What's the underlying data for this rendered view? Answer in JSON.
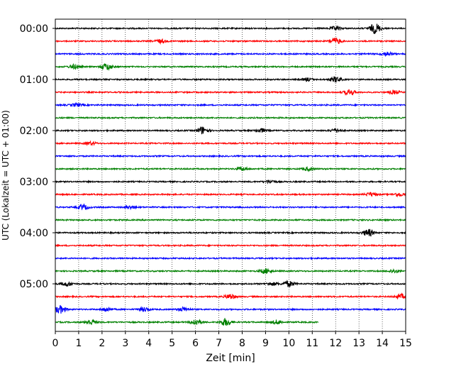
{
  "chart_data": {
    "type": "line",
    "xlabel": "Zeit  [min]",
    "ylabel": "UTC (Lokalzeit = UTC + 01:00)",
    "xlim": [
      0,
      15
    ],
    "x_ticks": [
      "0",
      "1",
      "2",
      "3",
      "4",
      "5",
      "6",
      "7",
      "8",
      "9",
      "10",
      "11",
      "12",
      "13",
      "14",
      "15"
    ],
    "y_ticks": [
      "00:00",
      "01:00",
      "02:00",
      "03:00",
      "04:00",
      "05:00"
    ],
    "grid": "vertical dotted lines at each minute",
    "colors": [
      "#000000",
      "#ff0000",
      "#0000ff",
      "#008000"
    ],
    "traces": [
      {
        "start": "00:00",
        "color": "#000000",
        "end_min": 15,
        "events": [
          [
            12.0,
            0.35
          ],
          [
            13.7,
            1.0
          ]
        ]
      },
      {
        "start": "00:15",
        "color": "#ff0000",
        "end_min": 15,
        "events": [
          [
            4.5,
            0.35
          ],
          [
            12.0,
            0.6
          ]
        ]
      },
      {
        "start": "00:30",
        "color": "#0000ff",
        "end_min": 15,
        "events": [
          [
            14.2,
            0.4
          ]
        ]
      },
      {
        "start": "00:45",
        "color": "#008000",
        "end_min": 15,
        "events": [
          [
            2.2,
            0.65
          ],
          [
            0.8,
            0.4
          ]
        ]
      },
      {
        "start": "01:00",
        "color": "#000000",
        "end_min": 15,
        "events": [
          [
            12.0,
            0.55
          ],
          [
            10.8,
            0.3
          ]
        ]
      },
      {
        "start": "01:15",
        "color": "#ff0000",
        "end_min": 15,
        "events": [
          [
            12.6,
            0.55
          ],
          [
            14.5,
            0.35
          ]
        ]
      },
      {
        "start": "01:30",
        "color": "#0000ff",
        "end_min": 15,
        "events": [
          [
            0.9,
            0.3
          ]
        ]
      },
      {
        "start": "01:45",
        "color": "#008000",
        "end_min": 15,
        "events": []
      },
      {
        "start": "02:00",
        "color": "#000000",
        "end_min": 15,
        "events": [
          [
            6.3,
            0.75
          ],
          [
            8.8,
            0.4
          ],
          [
            12.0,
            0.35
          ]
        ]
      },
      {
        "start": "02:15",
        "color": "#ff0000",
        "end_min": 15,
        "events": [
          [
            1.5,
            0.3
          ]
        ]
      },
      {
        "start": "02:30",
        "color": "#0000ff",
        "end_min": 15,
        "events": []
      },
      {
        "start": "02:45",
        "color": "#008000",
        "end_min": 15,
        "events": [
          [
            8.0,
            0.35
          ],
          [
            10.8,
            0.3
          ]
        ]
      },
      {
        "start": "03:00",
        "color": "#000000",
        "end_min": 15,
        "events": [
          [
            9.2,
            0.3
          ]
        ]
      },
      {
        "start": "03:15",
        "color": "#ff0000",
        "end_min": 15,
        "events": [
          [
            13.5,
            0.35
          ],
          [
            14.7,
            0.35
          ]
        ]
      },
      {
        "start": "03:30",
        "color": "#0000ff",
        "end_min": 15,
        "events": [
          [
            1.2,
            0.45
          ],
          [
            3.2,
            0.3
          ]
        ]
      },
      {
        "start": "03:45",
        "color": "#008000",
        "end_min": 15,
        "events": []
      },
      {
        "start": "04:00",
        "color": "#000000",
        "end_min": 15,
        "events": [
          [
            13.4,
            0.7
          ]
        ]
      },
      {
        "start": "04:15",
        "color": "#ff0000",
        "end_min": 15,
        "events": []
      },
      {
        "start": "04:30",
        "color": "#0000ff",
        "end_min": 15,
        "events": []
      },
      {
        "start": "04:45",
        "color": "#008000",
        "end_min": 15,
        "events": [
          [
            9.0,
            0.5
          ],
          [
            14.5,
            0.35
          ]
        ]
      },
      {
        "start": "05:00",
        "color": "#000000",
        "end_min": 15,
        "events": [
          [
            0.5,
            0.45
          ],
          [
            10.0,
            0.55
          ],
          [
            9.3,
            0.3
          ]
        ]
      },
      {
        "start": "05:15",
        "color": "#ff0000",
        "end_min": 15,
        "events": [
          [
            7.5,
            0.5
          ],
          [
            14.8,
            0.45
          ]
        ]
      },
      {
        "start": "05:30",
        "color": "#0000ff",
        "end_min": 15,
        "events": [
          [
            0.2,
            0.75
          ],
          [
            2.2,
            0.4
          ],
          [
            3.8,
            0.4
          ],
          [
            5.5,
            0.4
          ]
        ]
      },
      {
        "start": "05:45",
        "color": "#008000",
        "end_min": 11.25,
        "events": [
          [
            1.5,
            0.5
          ],
          [
            6.0,
            0.6
          ],
          [
            7.3,
            0.75
          ],
          [
            9.5,
            0.4
          ]
        ]
      }
    ]
  }
}
